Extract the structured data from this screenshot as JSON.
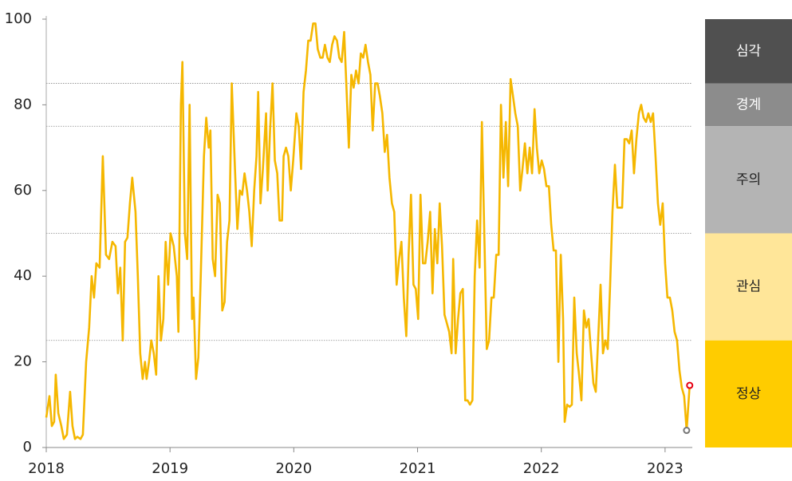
{
  "chart_data": {
    "type": "line",
    "x": [
      2018.0,
      2018.026,
      2018.045,
      2018.064,
      2018.077,
      2018.097,
      2018.122,
      2018.142,
      2018.167,
      2018.193,
      2018.212,
      2018.232,
      2018.251,
      2018.277,
      2018.296,
      2018.322,
      2018.347,
      2018.367,
      2018.386,
      2018.405,
      2018.431,
      2018.457,
      2018.483,
      2018.508,
      2018.534,
      2018.56,
      2018.579,
      2018.598,
      2018.618,
      2018.637,
      2018.656,
      2018.676,
      2018.695,
      2018.721,
      2018.74,
      2018.759,
      2018.779,
      2018.798,
      2018.811,
      2018.83,
      2018.849,
      2018.869,
      2018.888,
      2018.907,
      2018.927,
      2018.946,
      2018.965,
      2018.985,
      2019.004,
      2019.03,
      2019.055,
      2019.068,
      2019.088,
      2019.1,
      2019.12,
      2019.139,
      2019.158,
      2019.178,
      2019.19,
      2019.21,
      2019.229,
      2019.248,
      2019.274,
      2019.293,
      2019.313,
      2019.326,
      2019.345,
      2019.364,
      2019.384,
      2019.403,
      2019.422,
      2019.441,
      2019.461,
      2019.48,
      2019.499,
      2019.525,
      2019.544,
      2019.564,
      2019.583,
      2019.602,
      2019.622,
      2019.641,
      2019.66,
      2019.68,
      2019.699,
      2019.712,
      2019.731,
      2019.75,
      2019.776,
      2019.789,
      2019.808,
      2019.828,
      2019.847,
      2019.866,
      2019.885,
      2019.905,
      2019.918,
      2019.937,
      2019.956,
      2019.976,
      2019.995,
      2020.021,
      2020.04,
      2020.059,
      2020.079,
      2020.098,
      2020.117,
      2020.136,
      2020.156,
      2020.175,
      2020.194,
      2020.214,
      2020.233,
      2020.252,
      2020.272,
      2020.291,
      2020.31,
      2020.329,
      2020.349,
      2020.368,
      2020.387,
      2020.407,
      2020.426,
      2020.445,
      2020.465,
      2020.484,
      2020.503,
      2020.523,
      2020.542,
      2020.561,
      2020.58,
      2020.6,
      2020.619,
      2020.638,
      2020.658,
      2020.677,
      2020.696,
      2020.716,
      2020.735,
      2020.754,
      2020.773,
      2020.793,
      2020.812,
      2020.831,
      2020.851,
      2020.87,
      2020.889,
      2020.909,
      2020.928,
      2020.947,
      2020.967,
      2020.986,
      2021.005,
      2021.024,
      2021.044,
      2021.063,
      2021.082,
      2021.102,
      2021.121,
      2021.14,
      2021.16,
      2021.179,
      2021.198,
      2021.218,
      2021.237,
      2021.256,
      2021.275,
      2021.288,
      2021.308,
      2021.327,
      2021.346,
      2021.366,
      2021.385,
      2021.404,
      2021.423,
      2021.443,
      2021.462,
      2021.481,
      2021.501,
      2021.52,
      2021.539,
      2021.559,
      2021.578,
      2021.597,
      2021.616,
      2021.636,
      2021.655,
      2021.674,
      2021.694,
      2021.713,
      2021.732,
      2021.752,
      2021.771,
      2021.79,
      2021.81,
      2021.829,
      2021.848,
      2021.867,
      2021.887,
      2021.906,
      2021.925,
      2021.945,
      2021.964,
      2021.983,
      2022.003,
      2022.022,
      2022.041,
      2022.061,
      2022.08,
      2022.099,
      2022.118,
      2022.138,
      2022.157,
      2022.176,
      2022.189,
      2022.208,
      2022.228,
      2022.247,
      2022.266,
      2022.286,
      2022.305,
      2022.324,
      2022.344,
      2022.363,
      2022.382,
      2022.402,
      2022.421,
      2022.44,
      2022.459,
      2022.479,
      2022.498,
      2022.517,
      2022.537,
      2022.556,
      2022.575,
      2022.595,
      2022.614,
      2022.633,
      2022.653,
      2022.672,
      2022.691,
      2022.71,
      2022.73,
      2022.749,
      2022.768,
      2022.788,
      2022.807,
      2022.826,
      2022.846,
      2022.865,
      2022.884,
      2022.903,
      2022.923,
      2022.942,
      2022.961,
      2022.981,
      2023.0,
      2023.019,
      2023.039,
      2023.058,
      2023.077,
      2023.097,
      2023.116,
      2023.135,
      2023.154,
      2023.174,
      2023.199
    ],
    "values": [
      7,
      12,
      5,
      6,
      17,
      8,
      5,
      2,
      3,
      13,
      5,
      2,
      2.5,
      2,
      3,
      20,
      28,
      40,
      35,
      43,
      42,
      68,
      45,
      44,
      48,
      47,
      36,
      42,
      25,
      48,
      49,
      57,
      63,
      55,
      40,
      22,
      16,
      20,
      16,
      20,
      25,
      22,
      17,
      40,
      25,
      30,
      48,
      38,
      50,
      47,
      40,
      27,
      80,
      90,
      50,
      44,
      80,
      30,
      35,
      16,
      21,
      40,
      68,
      77,
      70,
      74,
      44,
      40,
      59,
      57,
      32,
      34,
      48,
      53,
      85,
      65,
      51,
      60,
      59,
      64,
      60,
      55,
      47,
      60,
      68,
      83,
      57,
      65,
      78,
      60,
      74,
      85,
      67,
      64,
      53,
      53,
      68,
      70,
      68,
      60,
      67,
      78,
      75,
      65,
      83,
      88,
      95,
      95,
      99,
      99,
      93,
      91,
      91,
      94,
      91,
      90,
      94,
      96,
      95,
      91,
      90,
      97,
      84,
      70,
      87,
      84,
      88,
      85,
      92,
      91,
      94,
      90,
      87,
      74,
      85,
      85,
      82,
      78,
      69,
      73,
      63,
      57,
      55,
      38,
      44,
      48,
      35,
      26,
      45,
      59,
      38,
      37,
      30,
      59,
      43,
      43,
      48,
      55,
      36,
      51,
      43,
      57,
      47,
      31,
      29,
      27,
      22,
      44,
      22,
      30,
      36,
      37,
      11,
      11,
      10,
      11,
      40,
      53,
      42,
      76,
      50,
      23,
      25,
      35,
      35,
      45,
      45,
      80,
      63,
      76,
      61,
      86,
      82,
      78,
      75,
      60,
      65,
      71,
      64,
      70,
      64,
      79,
      70,
      64,
      67,
      65,
      61,
      61,
      52,
      46,
      46,
      20,
      45,
      30,
      6,
      10,
      9.5,
      10,
      35,
      22,
      17,
      11,
      32,
      28,
      30,
      22,
      15,
      13,
      25,
      38,
      22,
      25,
      23,
      38,
      55,
      66,
      56,
      56,
      56,
      72,
      72,
      71,
      74,
      64,
      72,
      78,
      80,
      77,
      76,
      78,
      76,
      78,
      68,
      57,
      52,
      57,
      43,
      35,
      35,
      32,
      27,
      25,
      18,
      14,
      12,
      4,
      14.5
    ],
    "color": "#f5b700",
    "end_marker_colors": [
      "#777777",
      "#e60012"
    ],
    "xlim": [
      2018,
      2023.22
    ],
    "xticks": [
      2018,
      2019,
      2020,
      2021,
      2022,
      2023
    ],
    "ylim": [
      0,
      100
    ],
    "yticks": [
      0,
      20,
      40,
      60,
      80,
      100
    ],
    "bands": [
      {
        "label": "심각",
        "from": 85,
        "to": 100,
        "color": "#505050",
        "label_color": "#ffffff"
      },
      {
        "label": "경계",
        "from": 75,
        "to": 85,
        "color": "#8c8c8c",
        "label_color": "#ffffff"
      },
      {
        "label": "주의",
        "from": 50,
        "to": 75,
        "color": "#b4b4b4",
        "label_color": "#222222"
      },
      {
        "label": "관심",
        "from": 25,
        "to": 50,
        "color": "#ffe699",
        "label_color": "#222222"
      },
      {
        "label": "정상",
        "from": 0,
        "to": 25,
        "color": "#ffcc00",
        "label_color": "#222222"
      }
    ]
  }
}
